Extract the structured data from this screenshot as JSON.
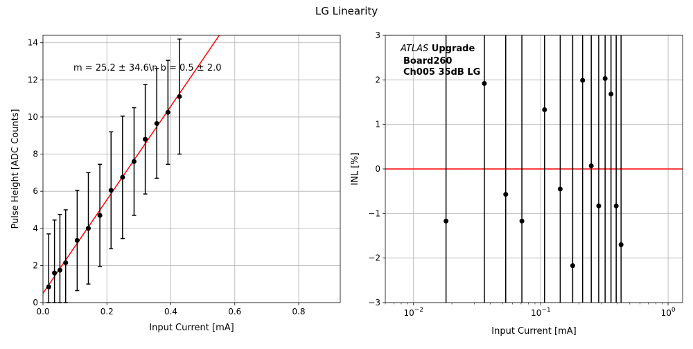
{
  "figure": {
    "title": "LG Linearity"
  },
  "chart_data": [
    {
      "type": "scatter",
      "xlabel": "Input Current [mA]",
      "ylabel": "Pulse Height [ADC Counts]",
      "xlim": [
        0,
        0.93
      ],
      "ylim": [
        0,
        14.4
      ],
      "xscale": "linear",
      "grid": true,
      "xticks": [
        "0.0",
        "0.2",
        "0.4",
        "0.6",
        "0.8"
      ],
      "yticks": [
        "0",
        "2",
        "4",
        "6",
        "8",
        "10",
        "12",
        "14"
      ],
      "annotation": "m = 25.2 ± 34.6\\n b = 0.5 ± 2.0",
      "points": {
        "x": [
          0.018,
          0.036,
          0.053,
          0.071,
          0.107,
          0.142,
          0.178,
          0.213,
          0.249,
          0.285,
          0.32,
          0.356,
          0.391,
          0.427
        ],
        "y": [
          0.85,
          1.6,
          1.75,
          2.15,
          3.35,
          4.0,
          4.7,
          6.05,
          6.75,
          7.6,
          8.8,
          9.65,
          10.25,
          11.1
        ],
        "yerr": [
          2.85,
          2.85,
          3.0,
          2.85,
          2.7,
          3.0,
          2.75,
          3.15,
          3.3,
          2.9,
          2.95,
          2.95,
          2.8,
          3.1
        ],
        "color": "#000000"
      },
      "fit_line": {
        "slope": 25.2,
        "intercept": 0.5,
        "color": "#ff0000"
      }
    },
    {
      "type": "scatter",
      "xlabel": "Input Current [mA]",
      "ylabel": "INL [%]",
      "xlim": [
        0.006,
        1.3
      ],
      "ylim": [
        -3,
        3
      ],
      "xscale": "log",
      "grid": true,
      "xticks": [
        0.01,
        0.1,
        1
      ],
      "yticks": [
        "−3",
        "−2",
        "−1",
        "0",
        "1",
        "2",
        "3"
      ],
      "annotation_lines": [
        "ATLAS Upgrade",
        "Board260",
        "Ch005 35dB LG"
      ],
      "annotation_italic": "ATLAS",
      "points": {
        "x": [
          0.018,
          0.036,
          0.053,
          0.071,
          0.107,
          0.142,
          0.178,
          0.213,
          0.249,
          0.285,
          0.32,
          0.356,
          0.391,
          0.427
        ],
        "y": [
          -1.17,
          1.92,
          -0.57,
          -1.17,
          1.33,
          -0.45,
          -2.17,
          1.99,
          0.07,
          -0.83,
          2.03,
          1.68,
          -0.83,
          -1.7
        ],
        "color": "#000000"
      },
      "reference_line": {
        "y": 0,
        "color": "#ff0000"
      }
    }
  ]
}
